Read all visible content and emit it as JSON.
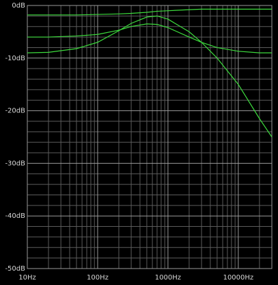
{
  "chart_data": {
    "type": "line",
    "log_x": true,
    "grid": true,
    "x": [
      10,
      20,
      50,
      100,
      200,
      300,
      500,
      700,
      1000,
      2000,
      3000,
      5000,
      10000,
      20000,
      30000
    ],
    "series": [
      {
        "color": "#3ddc3d",
        "values": [
          -1.8,
          -1.8,
          -1.8,
          -1.7,
          -1.6,
          -1.5,
          -1.3,
          -1.1,
          -1.0,
          -0.8,
          -0.7,
          -0.7,
          -0.7,
          -0.7,
          -0.7
        ]
      },
      {
        "color": "#3ddc3d",
        "values": [
          -6,
          -6,
          -5.8,
          -5.5,
          -4.7,
          -4,
          -3.5,
          -3.6,
          -4.2,
          -6,
          -7,
          -8,
          -8.7,
          -9,
          -9
        ]
      },
      {
        "color": "#3ddc3d",
        "values": [
          -9,
          -8.9,
          -8.2,
          -7,
          -4.8,
          -3.4,
          -2.2,
          -2,
          -2.6,
          -5,
          -7,
          -10,
          -15,
          -21.5,
          -25
        ]
      }
    ],
    "xlim": [
      10,
      30000
    ],
    "xticks": [
      {
        "value": 10,
        "label": "10Hz"
      },
      {
        "value": 100,
        "label": "100Hz"
      },
      {
        "value": 1000,
        "label": "1000Hz"
      },
      {
        "value": 10000,
        "label": "10000Hz"
      }
    ],
    "ylim": [
      -50,
      0
    ],
    "yticks": [
      {
        "value": 0,
        "label": "0dB"
      },
      {
        "value": -10,
        "label": "-10dB"
      },
      {
        "value": -20,
        "label": "-20dB"
      },
      {
        "value": -30,
        "label": "-30dB"
      },
      {
        "value": -40,
        "label": "-40dB"
      },
      {
        "value": -50,
        "label": "-50dB"
      }
    ]
  }
}
